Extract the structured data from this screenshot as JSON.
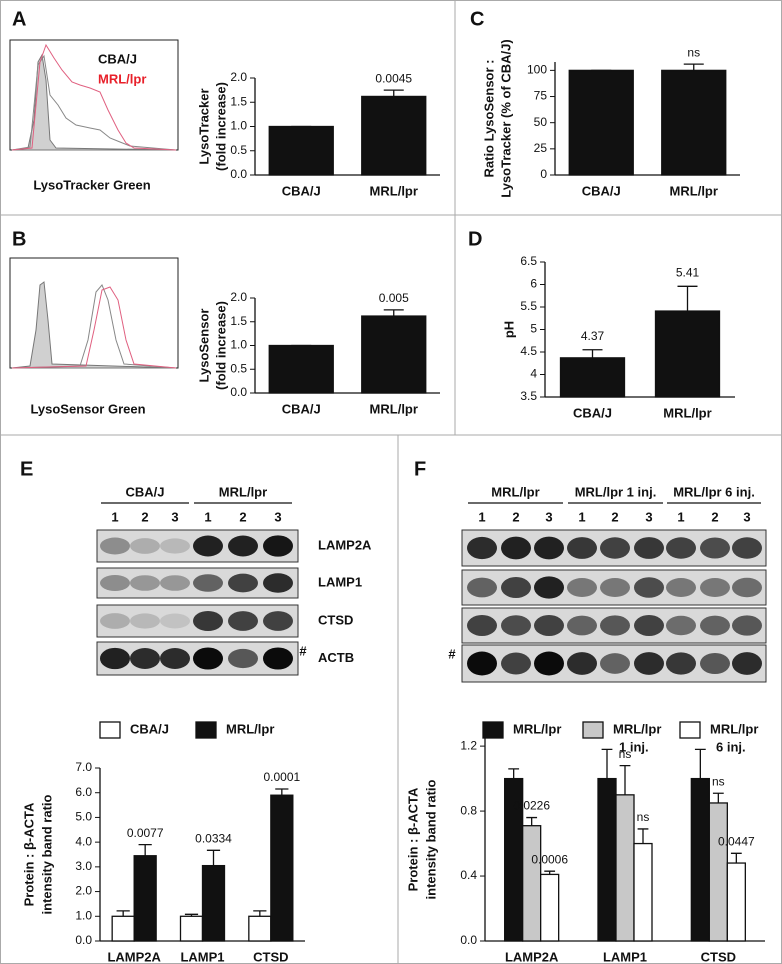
{
  "panels": [
    "A",
    "B",
    "C",
    "D",
    "E",
    "F"
  ],
  "flow_panels": [
    {
      "legend": [
        "CBA/J",
        "MRL/lpr"
      ],
      "xlabel": "LysoTracker Green"
    },
    {
      "xlabel": "LysoSensor Green"
    }
  ],
  "blots": [
    {
      "groups": [
        {
          "label": "CBA/J",
          "lanes": [
            "1",
            "2",
            "3"
          ]
        },
        {
          "label": "MRL/lpr",
          "lanes": [
            "1",
            "2",
            "3"
          ]
        }
      ],
      "bands": [
        "LAMP2A",
        "LAMP1",
        "CTSD",
        "ACTB"
      ],
      "marker": "#"
    },
    {
      "groups": [
        {
          "label": "MRL/lpr",
          "lanes": [
            "1",
            "2",
            "3"
          ]
        },
        {
          "label": "MRL/lpr 1 inj.",
          "lanes": [
            "1",
            "2",
            "3"
          ]
        },
        {
          "label": "MRL/lpr 6 inj.",
          "lanes": [
            "1",
            "2",
            "3"
          ]
        }
      ],
      "marker": "#"
    }
  ],
  "chart_data": [
    {
      "type": "bar",
      "ylabel": [
        "LysoTracker",
        "(fold increase)"
      ],
      "categories": [
        "CBA/J",
        "MRL/lpr"
      ],
      "values": [
        1.0,
        1.62
      ],
      "errors": [
        0,
        0.13
      ],
      "annotations": [
        null,
        "0.0045"
      ],
      "color": "#111111",
      "ylim": [
        0,
        2.0
      ],
      "yticks": [
        {
          "value": 0,
          "label": "0.0"
        },
        {
          "value": 0.5,
          "label": "0.5"
        },
        {
          "value": 1,
          "label": "1.0"
        },
        {
          "value": 1.5,
          "label": "1.5"
        },
        {
          "value": 2,
          "label": "2.0"
        }
      ]
    },
    {
      "type": "bar",
      "ylabel": [
        "Ratio LysoSensor :",
        "LysoTracker (% of CBA/J)"
      ],
      "categories": [
        "CBA/J",
        "MRL/lpr"
      ],
      "values": [
        100,
        100
      ],
      "errors": [
        0,
        6
      ],
      "annotations": [
        null,
        "ns"
      ],
      "color": "#111111",
      "ylim": [
        0,
        108
      ],
      "yticks": [
        0,
        25,
        50,
        75,
        100
      ]
    },
    {
      "type": "bar",
      "ylabel": [
        "LysoSensor",
        "(fold increase)"
      ],
      "categories": [
        "CBA/J",
        "MRL/lpr"
      ],
      "values": [
        1.0,
        1.62
      ],
      "errors": [
        0,
        0.13
      ],
      "annotations": [
        null,
        "0.005"
      ],
      "color": "#111111",
      "ylim": [
        0,
        2.0
      ],
      "yticks": [
        {
          "value": 0,
          "label": "0.0"
        },
        {
          "value": 0.5,
          "label": "0.5"
        },
        {
          "value": 1,
          "label": "1.0"
        },
        {
          "value": 1.5,
          "label": "1.5"
        },
        {
          "value": 2,
          "label": "2.0"
        }
      ]
    },
    {
      "type": "bar",
      "ylabel": [
        "pH"
      ],
      "categories": [
        "CBA/J",
        "MRL/lpr"
      ],
      "values": [
        4.37,
        5.41
      ],
      "errors": [
        0.18,
        0.55
      ],
      "data_labels": true,
      "color": "#111111",
      "ylim": [
        3.5,
        6.5
      ],
      "yticks": [
        3.5,
        4,
        4.5,
        5,
        5.5,
        6,
        6.5
      ]
    },
    {
      "type": "bar",
      "ylabel": [
        "Protein : β-ACTA",
        "intensity band ratio"
      ],
      "categories": [
        "LAMP2A",
        "LAMP1",
        "CTSD"
      ],
      "series": [
        {
          "name": [
            "CBA/J"
          ],
          "color": "#ffffff",
          "values": [
            1.0,
            1.0,
            1.0
          ],
          "errors": [
            0.22,
            0.08,
            0.22
          ],
          "annotations": [
            null,
            null,
            null
          ]
        },
        {
          "name": [
            "MRL/lpr"
          ],
          "color": "#111111",
          "values": [
            3.45,
            3.05,
            5.9
          ],
          "errors": [
            0.45,
            0.62,
            0.25
          ],
          "annotations": [
            "0.0077",
            "0.0334",
            "0.0001"
          ]
        }
      ],
      "ylim": [
        0,
        7.0
      ],
      "yticks": [
        {
          "value": 0,
          "label": "0.0"
        },
        {
          "value": 1,
          "label": "1.0"
        },
        {
          "value": 2,
          "label": "2.0"
        },
        {
          "value": 3,
          "label": "3.0"
        },
        {
          "value": 4,
          "label": "4.0"
        },
        {
          "value": 5,
          "label": "5.0"
        },
        {
          "value": 6,
          "label": "6.0"
        },
        {
          "value": 7,
          "label": "7.0"
        }
      ]
    },
    {
      "type": "bar",
      "ylabel": [
        "Protein : β-ACTA",
        "intensity band ratio"
      ],
      "categories": [
        "LAMP2A",
        "LAMP1",
        "CTSD"
      ],
      "series": [
        {
          "name": [
            "MRL/lpr"
          ],
          "color": "#111111",
          "values": [
            1.0,
            1.0,
            1.0
          ],
          "errors": [
            0.06,
            0.18,
            0.18
          ],
          "annotations": [
            null,
            null,
            null
          ]
        },
        {
          "name": [
            "MRL/lpr",
            "1 inj."
          ],
          "color": "#c8c8c8",
          "values": [
            0.71,
            0.9,
            0.85
          ],
          "errors": [
            0.05,
            0.18,
            0.06
          ],
          "annotations": [
            "0.0226",
            "ns",
            "ns"
          ]
        },
        {
          "name": [
            "MRL/lpr",
            "6 inj."
          ],
          "color": "#ffffff",
          "values": [
            0.41,
            0.6,
            0.48
          ],
          "errors": [
            0.02,
            0.09,
            0.06
          ],
          "annotations": [
            "0.0006",
            "ns",
            "0.0447"
          ]
        }
      ],
      "ylim": [
        0,
        1.25
      ],
      "yticks": [
        {
          "value": 0,
          "label": "0.0"
        },
        {
          "value": 0.4,
          "label": "0.4"
        },
        {
          "value": 0.8,
          "label": "0.8"
        },
        {
          "value": 1.2,
          "label": "1.2"
        }
      ]
    }
  ]
}
